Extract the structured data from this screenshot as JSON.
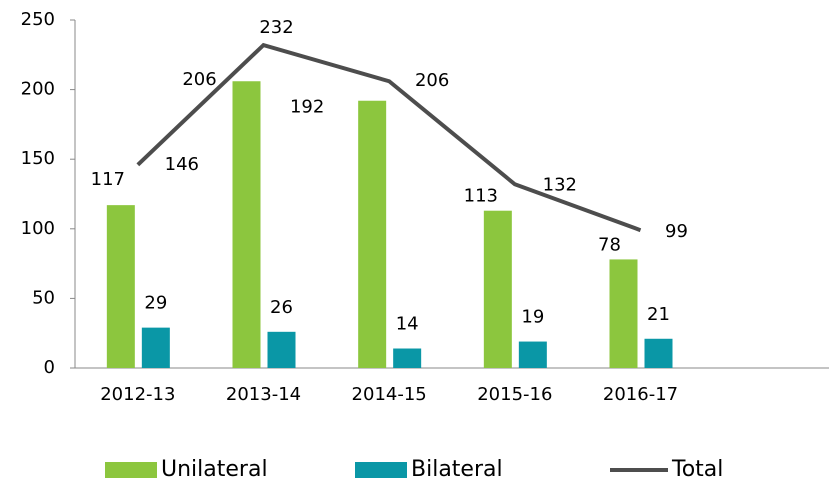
{
  "chart_data": {
    "type": "bar",
    "categories": [
      "2012-13",
      "2013-14",
      "2014-15",
      "2015-16",
      "2016-17",
      null
    ],
    "series": [
      {
        "name": "Unilateral",
        "color": "#8cc63e",
        "values": [
          117,
          206,
          192,
          113,
          78,
          null
        ]
      },
      {
        "name": "Bilateral",
        "color": "#0a97a6",
        "values": [
          29,
          26,
          14,
          19,
          21,
          null
        ]
      },
      {
        "name": "Total",
        "type": "line",
        "color": "#4d4d4d",
        "values": [
          146,
          232,
          206,
          132,
          99,
          null
        ]
      }
    ],
    "ylim": [
      0,
      250
    ],
    "yticks": [
      0,
      50,
      100,
      150,
      200,
      250
    ],
    "grid": false,
    "legend": "bottom"
  }
}
